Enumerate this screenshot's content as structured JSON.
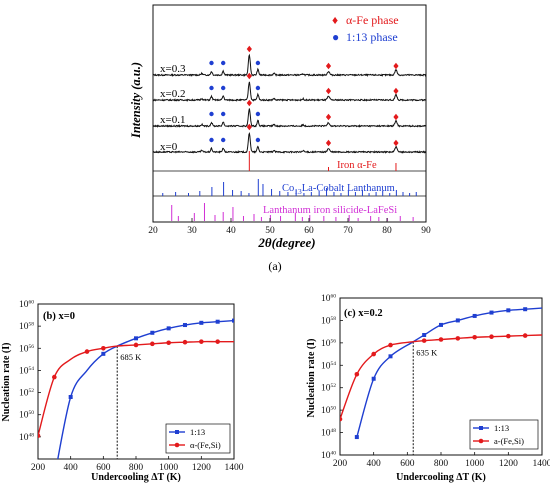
{
  "panel_a": {
    "label": "(a)",
    "legend": [
      {
        "symbol": "♦",
        "text": "α-Fe phase",
        "color": "#e31a1c"
      },
      {
        "symbol": "●",
        "text": "1:13 phase",
        "color": "#1f3fd1"
      }
    ],
    "y_axis_label": "Intensity (a.u.)",
    "x_axis_label": "2θ(degree)",
    "x_ticks": [
      "20",
      "30",
      "40",
      "50",
      "60",
      "70",
      "80",
      "90"
    ],
    "trace_labels": [
      "x=0.3",
      "x=0.2",
      "x=0.1",
      "x=0"
    ],
    "ref_iron": "Iron α-Fe",
    "ref_cobalt_prefix": "Co",
    "ref_cobalt_sub": "13",
    "ref_cobalt_suffix": "La-Cobalt Lanthanum",
    "ref_lafesi": "Lanthanum iron silicide-LaFeSi"
  },
  "panel_b": {
    "label": "(b) x=0",
    "ylabel": "Nucleation rate (I)",
    "xlabel": "Undercooling ΔT (K)",
    "annotation": "685 K",
    "x_ticks": [
      "200",
      "400",
      "600",
      "800",
      "1000",
      "1200",
      "1400"
    ],
    "y_ticks": [
      {
        "base": "10",
        "exp": "48"
      },
      {
        "base": "10",
        "exp": "50"
      },
      {
        "base": "10",
        "exp": "52"
      },
      {
        "base": "10",
        "exp": "54"
      },
      {
        "base": "10",
        "exp": "56"
      },
      {
        "base": "10",
        "exp": "58"
      },
      {
        "base": "10",
        "exp": "60"
      }
    ],
    "legend": [
      "1:13",
      "α-(Fe,Si)"
    ]
  },
  "panel_c": {
    "label": "(c) x=0.2",
    "ylabel": "Nucleation rate (I)",
    "xlabel": "Undercooling ΔT (K)",
    "annotation": "635 K",
    "x_ticks": [
      "200",
      "400",
      "600",
      "800",
      "1000",
      "1200",
      "1400"
    ],
    "y_ticks": [
      {
        "base": "10",
        "exp": "40"
      },
      {
        "base": "10",
        "exp": "48"
      },
      {
        "base": "10",
        "exp": "50"
      },
      {
        "base": "10",
        "exp": "52"
      },
      {
        "base": "10",
        "exp": "54"
      },
      {
        "base": "10",
        "exp": "56"
      },
      {
        "base": "10",
        "exp": "58"
      },
      {
        "base": "10",
        "exp": "60"
      }
    ],
    "legend": [
      "1:13",
      "a-(Fe,Si)"
    ]
  },
  "colors": {
    "blue": "#1f3fd1",
    "red": "#e31a1c",
    "magenta": "#d12fd6",
    "black": "#111111"
  },
  "chart_data": [
    {
      "type": "line",
      "xlim": [
        20,
        90
      ],
      "xlabel": "2θ(degree)",
      "ylabel": "Intensity (a.u.)",
      "grid": false,
      "legend": "top-right",
      "series": [
        {
          "name": "x=0.3",
          "peaks_alpha_fe": [
            44.7,
            65.0,
            82.3
          ],
          "peaks_1_13": [
            35.0,
            38.0,
            46.9
          ],
          "main_peak": 44.7
        },
        {
          "name": "x=0.2",
          "peaks_alpha_fe": [
            44.7,
            65.0,
            82.3
          ],
          "peaks_1_13": [
            35.0,
            38.0,
            46.9
          ],
          "main_peak": 44.7
        },
        {
          "name": "x=0.1",
          "peaks_alpha_fe": [
            44.7,
            65.0,
            82.3
          ],
          "peaks_1_13": [
            35.0,
            38.0,
            46.9
          ],
          "main_peak": 44.7
        },
        {
          "name": "x=0",
          "peaks_alpha_fe": [
            44.7,
            65.0,
            82.3
          ],
          "peaks_1_13": [
            35.0,
            38.0,
            46.9
          ],
          "main_peak": 44.7
        }
      ],
      "reference_lines": {
        "iron": [
          44.7,
          65.0,
          82.3
        ],
        "cobalt_la": [
          22.5,
          25.8,
          29.1,
          32.0,
          35.1,
          38.1,
          40.4,
          42.6,
          44.6,
          47.0,
          48.2,
          50.4,
          52.5,
          54.6,
          56.7,
          58.7,
          60.6,
          62.6,
          64.5,
          66.4,
          68.2,
          70.1,
          71.9,
          73.7,
          75.4,
          77.2,
          78.9,
          80.7,
          82.4,
          84.1,
          85.8,
          87.5
        ],
        "lafesi": [
          24.8,
          26.5,
          30.6,
          33.2,
          35.9,
          38.0,
          40.5,
          43.2,
          45.9,
          47.8,
          50.1,
          52.7,
          56.5,
          58.3,
          60.2,
          63.8,
          66.9,
          70.3,
          72.6,
          75.8,
          77.9,
          80.1,
          83.4,
          86.7
        ]
      }
    },
    {
      "type": "line",
      "title": "(b) x=0",
      "xlabel": "Undercooling ΔT (K)",
      "ylabel": "Nucleation rate (I)",
      "xlim": [
        200,
        1400
      ],
      "ylim_log10": [
        46,
        60
      ],
      "legend": "bottom-right",
      "series": [
        {
          "name": "1:13",
          "x": [
            300,
            400,
            500,
            600,
            685,
            800,
            900,
            1000,
            1100,
            1200,
            1300,
            1400
          ],
          "log10_y": [
            44.3,
            51.6,
            54.0,
            55.5,
            56.2,
            56.9,
            57.4,
            57.8,
            58.1,
            58.3,
            58.4,
            58.5
          ]
        },
        {
          "name": "α-(Fe,Si)",
          "x": [
            200,
            300,
            400,
            500,
            600,
            685,
            800,
            900,
            1000,
            1100,
            1200,
            1300,
            1400
          ],
          "log10_y": [
            48.1,
            53.4,
            55.0,
            55.7,
            56.0,
            56.2,
            56.3,
            56.4,
            56.5,
            56.55,
            56.6,
            56.6,
            56.6
          ]
        }
      ]
    },
    {
      "type": "line",
      "title": "(c) x=0.2",
      "xlabel": "Undercooling ΔT (K)",
      "ylabel": "Nucleation rate (I)",
      "xlim": [
        200,
        1400
      ],
      "ylim_log10": [
        46,
        60
      ],
      "legend": "bottom-right",
      "series": [
        {
          "name": "1:13",
          "x": [
            300,
            400,
            500,
            635,
            700,
            800,
            900,
            1000,
            1100,
            1200,
            1300,
            1400
          ],
          "log10_y": [
            47.6,
            52.8,
            54.8,
            56.1,
            56.7,
            57.6,
            58.0,
            58.4,
            58.7,
            58.9,
            59.0,
            59.1
          ]
        },
        {
          "name": "a-(Fe,Si)",
          "x": [
            200,
            300,
            400,
            500,
            635,
            700,
            800,
            900,
            1000,
            1100,
            1200,
            1300,
            1400
          ],
          "log10_y": [
            49.2,
            53.2,
            55.0,
            55.8,
            56.1,
            56.2,
            56.3,
            56.4,
            56.5,
            56.55,
            56.6,
            56.65,
            56.7
          ]
        }
      ]
    }
  ]
}
